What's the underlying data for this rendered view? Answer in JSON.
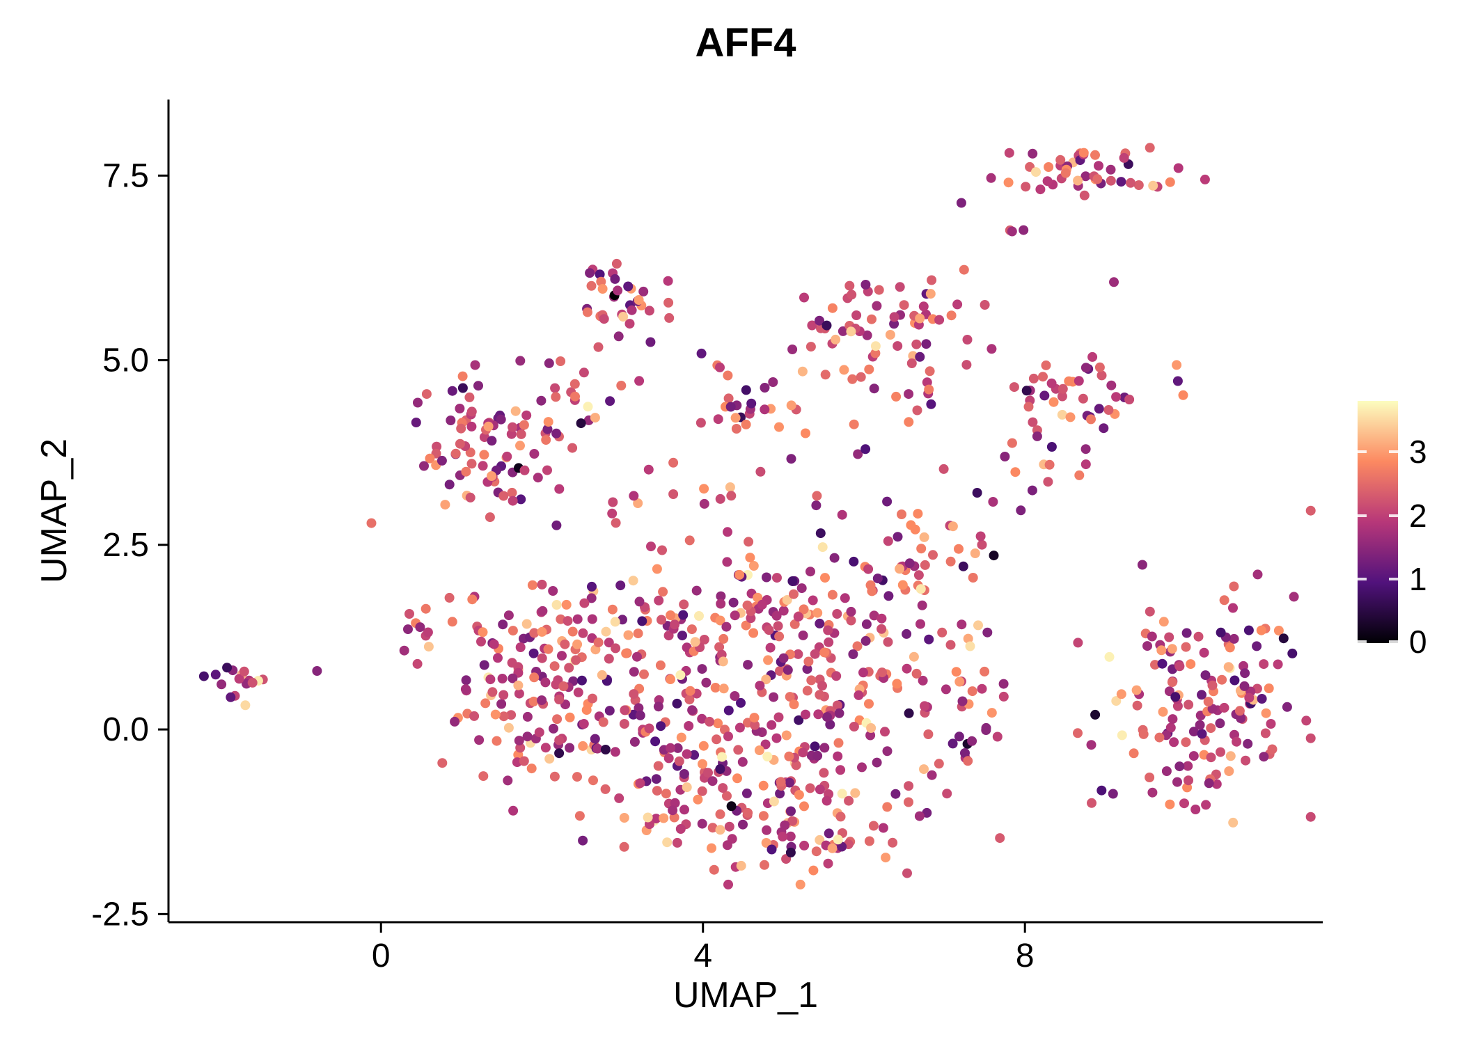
{
  "chart_data": {
    "type": "scatter",
    "title": "AFF4",
    "xlabel": "UMAP_1",
    "ylabel": "UMAP_2",
    "xlim": [
      -2.64,
      11.7
    ],
    "ylim": [
      -2.61,
      8.53
    ],
    "x_ticks": [
      {
        "value": 0,
        "label": "0"
      },
      {
        "value": 4,
        "label": "4"
      },
      {
        "value": 8,
        "label": "8"
      }
    ],
    "y_ticks": [
      {
        "value": -2.5,
        "label": "-2.5"
      },
      {
        "value": 0,
        "label": "0.0"
      },
      {
        "value": 2.5,
        "label": "2.5"
      },
      {
        "value": 5,
        "label": "5.0"
      },
      {
        "value": 7.5,
        "label": "7.5"
      }
    ],
    "grid": false,
    "background": "#ffffff",
    "axis_color": "#000000",
    "point_radius": 7,
    "colorbar": {
      "position": "right",
      "min": 0,
      "max": 3.8,
      "ticks": [
        3,
        2,
        1,
        0
      ],
      "colormap": "magma",
      "stops": [
        [
          0.0,
          "#000004"
        ],
        [
          0.25,
          "#51127c"
        ],
        [
          0.5,
          "#b73779"
        ],
        [
          0.75,
          "#fc8961"
        ],
        [
          1.0,
          "#fcfdbf"
        ]
      ]
    },
    "expression_range": [
      0,
      3.7
    ],
    "value_distribution": {
      "mean": 2.15,
      "sd": 0.72
    },
    "seed": 20240601,
    "clusters": [
      {
        "cx": -1.75,
        "cy": 0.65,
        "sx": 0.2,
        "sy": 0.12,
        "n": 16
      },
      {
        "cx": -0.8,
        "cy": 0.8,
        "sx": 0.01,
        "sy": 0.01,
        "n": 1
      },
      {
        "cx": 8.85,
        "cy": 7.55,
        "sx": 0.5,
        "sy": 0.2,
        "n": 48
      },
      {
        "cx": 7.8,
        "cy": 6.75,
        "sx": 0.12,
        "sy": 0.1,
        "n": 3
      },
      {
        "cx": 9.1,
        "cy": 6.05,
        "sx": 0.01,
        "sy": 0.01,
        "n": 1
      },
      {
        "cx": 8.7,
        "cy": 4.4,
        "sx": 0.45,
        "sy": 0.33,
        "n": 40
      },
      {
        "cx": 9.9,
        "cy": 4.85,
        "sx": 0.15,
        "sy": 0.12,
        "n": 3
      },
      {
        "cx": 10.2,
        "cy": 0.4,
        "sx": 0.7,
        "sy": 0.75,
        "n": 150
      },
      {
        "cx": 3.0,
        "cy": 5.75,
        "sx": 0.3,
        "sy": 0.33,
        "n": 34
      },
      {
        "cx": 6.3,
        "cy": 5.45,
        "sx": 0.5,
        "sy": 0.35,
        "n": 60
      },
      {
        "cx": 1.3,
        "cy": 3.9,
        "sx": 0.45,
        "sy": 0.5,
        "n": 85
      },
      {
        "cx": 4.6,
        "cy": 4.35,
        "sx": 0.45,
        "sy": 0.18,
        "n": 20
      },
      {
        "cx": 4.35,
        "cy": 4.95,
        "sx": 0.15,
        "sy": 0.1,
        "n": 4
      },
      {
        "cx": 3.0,
        "cy": 0.4,
        "sx": 0.8,
        "sy": 0.75,
        "n": 125
      },
      {
        "cx": 4.8,
        "cy": -0.5,
        "sx": 0.85,
        "sy": 0.55,
        "n": 125
      },
      {
        "cx": 5.7,
        "cy": 0.8,
        "sx": 0.65,
        "sy": 0.75,
        "n": 115
      },
      {
        "cx": 4.2,
        "cy": 1.6,
        "sx": 0.85,
        "sy": 0.45,
        "n": 75
      },
      {
        "cx": 2.0,
        "cy": 1.3,
        "sx": 0.55,
        "sy": 0.4,
        "n": 55
      },
      {
        "cx": 6.6,
        "cy": 2.3,
        "sx": 0.45,
        "sy": 0.45,
        "n": 42
      },
      {
        "cx": 5.2,
        "cy": -1.5,
        "sx": 0.65,
        "sy": 0.3,
        "n": 45
      },
      {
        "cx": 3.6,
        "cy": -1.15,
        "sx": 0.45,
        "sy": 0.25,
        "n": 22
      },
      {
        "cx": 7.3,
        "cy": 0.4,
        "sx": 0.35,
        "sy": 0.55,
        "n": 28
      },
      {
        "cx": 4.8,
        "cy": 3.3,
        "sx": 1.2,
        "sy": 0.5,
        "n": 22
      },
      {
        "cx": 2.45,
        "cy": 4.5,
        "sx": 0.45,
        "sy": 0.35,
        "n": 18
      },
      {
        "cx": 6.0,
        "cy": 4.7,
        "sx": 0.6,
        "sy": 0.25,
        "n": 15
      },
      {
        "cx": 8.15,
        "cy": 3.6,
        "sx": 0.3,
        "sy": 0.4,
        "n": 10
      },
      {
        "cx": 1.5,
        "cy": 0.2,
        "sx": 0.4,
        "sy": 0.6,
        "n": 35
      },
      {
        "cx": 0.55,
        "cy": 1.45,
        "sx": 0.25,
        "sy": 0.25,
        "n": 12
      },
      {
        "cx": 3.05,
        "cy": 3.0,
        "sx": 0.2,
        "sy": 0.12,
        "n": 4
      }
    ]
  }
}
